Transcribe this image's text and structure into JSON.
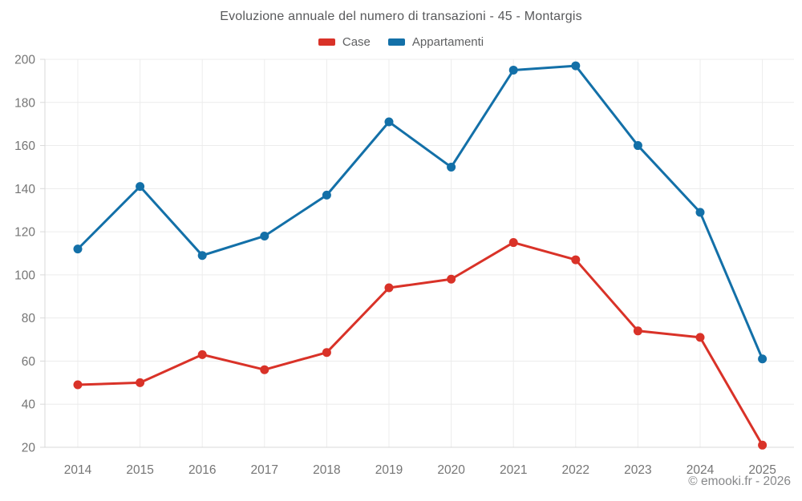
{
  "title": "Evoluzione annuale del numero di transazioni - 45 - Montargis",
  "footer": "© emooki.fr - 2026",
  "legend": {
    "items": [
      {
        "label": "Case",
        "color": "#d93228"
      },
      {
        "label": "Appartamenti",
        "color": "#1370a8"
      }
    ]
  },
  "colors": {
    "case_red": "#d93228",
    "appartamenti_blue": "#1370a8",
    "gridline": "#ececec",
    "axis_line": "#d9d9d9",
    "tick_label": "#757575",
    "title_text": "#58595b",
    "footer_text": "#87888a",
    "background": "#ffffff"
  },
  "chart_data": {
    "type": "line",
    "title": "Evoluzione annuale del numero di transazioni - 45 - Montargis",
    "xlabel": "",
    "ylabel": "",
    "x": [
      2014,
      2015,
      2016,
      2017,
      2018,
      2019,
      2020,
      2021,
      2022,
      2023,
      2024,
      2025
    ],
    "series": [
      {
        "name": "Case",
        "color": "#d93228",
        "values": [
          49,
          50,
          63,
          56,
          64,
          94,
          98,
          115,
          107,
          74,
          71,
          21
        ]
      },
      {
        "name": "Appartamenti",
        "color": "#1370a8",
        "values": [
          112,
          141,
          109,
          118,
          137,
          171,
          150,
          195,
          197,
          160,
          129,
          61
        ]
      }
    ],
    "ylim": [
      20,
      200
    ],
    "ytick_step": 20,
    "yticks": [
      20,
      40,
      60,
      80,
      100,
      120,
      140,
      160,
      180,
      200
    ],
    "grid": true,
    "legend_position": "top",
    "marker": "circle"
  }
}
